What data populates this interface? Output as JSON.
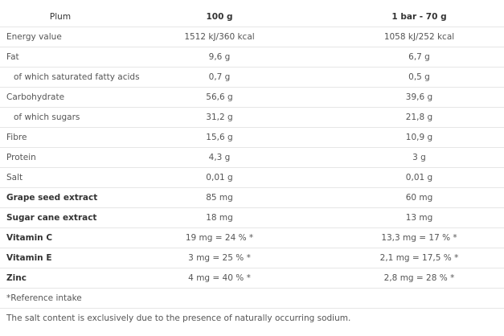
{
  "header": {
    "product": "Plum",
    "col_100g": "100 g",
    "col_bar": "1 bar - 70 g"
  },
  "rows": [
    {
      "label": "Energy value",
      "per100": "1512 kJ/360 kcal",
      "perBar": "1058 kJ/252 kcal",
      "bold": false,
      "sub": false
    },
    {
      "label": "Fat",
      "per100": "9,6 g",
      "perBar": "6,7 g",
      "bold": false,
      "sub": false
    },
    {
      "label": "of which saturated fatty acids",
      "per100": "0,7 g",
      "perBar": "0,5 g",
      "bold": false,
      "sub": true
    },
    {
      "label": "Carbohydrate",
      "per100": "56,6 g",
      "perBar": "39,6 g",
      "bold": false,
      "sub": false
    },
    {
      "label": "of which sugars",
      "per100": "31,2 g",
      "perBar": "21,8 g",
      "bold": false,
      "sub": true
    },
    {
      "label": "Fibre",
      "per100": "15,6 g",
      "perBar": "10,9 g",
      "bold": false,
      "sub": false
    },
    {
      "label": "Protein",
      "per100": "4,3 g",
      "perBar": "3 g",
      "bold": false,
      "sub": false
    },
    {
      "label": "Salt",
      "per100": "0,01 g",
      "perBar": "0,01 g",
      "bold": false,
      "sub": false
    },
    {
      "label": "Grape seed extract",
      "per100": "85 mg",
      "perBar": "60 mg",
      "bold": true,
      "sub": false
    },
    {
      "label": "Sugar cane extract",
      "per100": "18 mg",
      "perBar": "13 mg",
      "bold": true,
      "sub": false
    },
    {
      "label": "Vitamin C",
      "per100": "19 mg = 24 % *",
      "perBar": "13,3 mg = 17 % *",
      "bold": true,
      "sub": false
    },
    {
      "label": "Vitamin E",
      "per100": "3 mg = 25 % *",
      "perBar": "2,1 mg = 17,5 % *",
      "bold": true,
      "sub": false
    },
    {
      "label": "Zinc",
      "per100": "4 mg = 40 % *",
      "perBar": "2,8 mg = 28 % *",
      "bold": true,
      "sub": false
    }
  ],
  "notes": {
    "reference": "*Reference intake",
    "salt": "The salt content is exclusively due to the presence of naturally occurring sodium."
  }
}
